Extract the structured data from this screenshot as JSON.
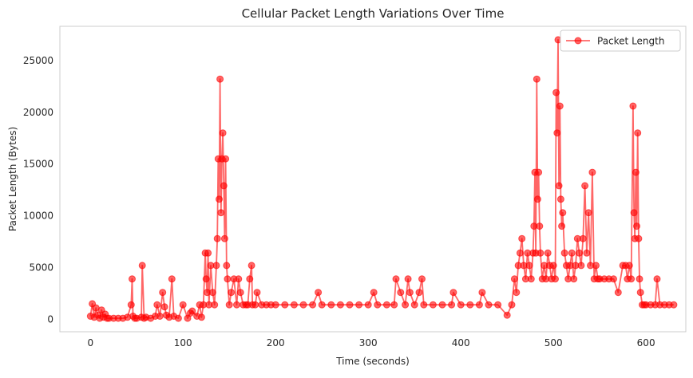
{
  "chart_data": {
    "type": "line",
    "title": "Cellular Packet Length Variations Over Time",
    "xlabel": "Time (seconds)",
    "ylabel": "Packet Length (Bytes)",
    "xlim": [
      -33,
      643
    ],
    "ylim": [
      -1200,
      28300
    ],
    "xticks": [
      0,
      100,
      200,
      300,
      400,
      500,
      600
    ],
    "xtick_labels": [
      "0",
      "100",
      "200",
      "300",
      "400",
      "500",
      "600"
    ],
    "yticks": [
      0,
      5000,
      10000,
      15000,
      20000,
      25000
    ],
    "ytick_labels": [
      "0",
      "5000",
      "10000",
      "15000",
      "20000",
      "25000"
    ],
    "grid": false,
    "legend_position": "top-right",
    "color": "#ff0000",
    "series": [
      {
        "name": "Packet Length",
        "marker": "circle",
        "x": [
          0,
          2,
          4,
          6,
          8,
          10,
          12,
          14,
          16,
          18,
          20,
          25,
          30,
          35,
          40,
          44,
          45,
          46,
          48,
          50,
          55,
          56,
          58,
          60,
          65,
          70,
          72,
          75,
          78,
          80,
          82,
          85,
          88,
          90,
          95,
          100,
          105,
          108,
          110,
          115,
          118,
          120,
          122,
          124,
          125,
          126,
          127,
          128,
          130,
          132,
          134,
          136,
          137,
          138,
          139,
          140,
          141,
          142,
          143,
          144,
          145,
          146,
          147,
          148,
          150,
          152,
          155,
          158,
          160,
          162,
          165,
          168,
          170,
          172,
          174,
          175,
          178,
          180,
          185,
          190,
          195,
          200,
          210,
          220,
          230,
          240,
          246,
          250,
          260,
          270,
          280,
          290,
          300,
          306,
          310,
          320,
          328,
          330,
          335,
          340,
          343,
          345,
          350,
          355,
          358,
          360,
          370,
          380,
          390,
          392,
          400,
          410,
          420,
          423,
          430,
          440,
          450,
          455,
          458,
          460,
          462,
          464,
          466,
          468,
          470,
          472,
          474,
          476,
          478,
          479,
          480,
          481,
          482,
          483,
          484,
          485,
          486,
          488,
          490,
          492,
          494,
          496,
          498,
          500,
          502,
          503,
          504,
          505,
          506,
          507,
          508,
          509,
          510,
          512,
          514,
          516,
          518,
          520,
          522,
          524,
          526,
          528,
          530,
          532,
          534,
          536,
          538,
          540,
          542,
          544,
          546,
          548,
          550,
          555,
          560,
          565,
          570,
          575,
          578,
          580,
          582,
          584,
          586,
          587,
          588,
          589,
          590,
          591,
          592,
          593,
          594,
          596,
          598,
          600,
          605,
          610,
          612,
          615,
          620,
          625,
          630
        ],
        "y": [
          300,
          1500,
          200,
          1100,
          400,
          100,
          900,
          200,
          500,
          100,
          100,
          100,
          100,
          100,
          200,
          1400,
          3900,
          300,
          100,
          100,
          200,
          5200,
          100,
          200,
          100,
          300,
          1400,
          300,
          2600,
          1200,
          400,
          200,
          3900,
          300,
          100,
          1400,
          100,
          600,
          800,
          300,
          1400,
          200,
          1400,
          6400,
          3900,
          2600,
          6400,
          1400,
          5200,
          2600,
          1400,
          5200,
          7800,
          15500,
          11600,
          23200,
          10300,
          15500,
          18000,
          12900,
          7800,
          15500,
          5200,
          3900,
          1400,
          2600,
          3900,
          1400,
          3900,
          2600,
          1400,
          1400,
          1400,
          3900,
          5200,
          1400,
          1400,
          2600,
          1400,
          1400,
          1400,
          1400,
          1400,
          1400,
          1400,
          1400,
          2600,
          1400,
          1400,
          1400,
          1400,
          1400,
          1400,
          2600,
          1400,
          1400,
          1400,
          3900,
          2600,
          1400,
          3900,
          2600,
          1400,
          2600,
          3900,
          1400,
          1400,
          1400,
          1400,
          2600,
          1400,
          1400,
          1400,
          2600,
          1400,
          1400,
          400,
          1400,
          3900,
          2600,
          5200,
          6400,
          7800,
          5200,
          3900,
          6400,
          5200,
          3900,
          6400,
          9000,
          14200,
          6400,
          23200,
          11600,
          14200,
          9000,
          6400,
          3900,
          5200,
          3900,
          6400,
          5200,
          3900,
          5200,
          3900,
          21900,
          18000,
          27000,
          12900,
          20600,
          11600,
          9000,
          10300,
          6400,
          5200,
          3900,
          5200,
          6400,
          3900,
          5200,
          7800,
          6400,
          5200,
          7800,
          12900,
          6400,
          10300,
          5200,
          14200,
          3900,
          5200,
          3900,
          3900,
          3900,
          3900,
          3900,
          2600,
          5200,
          5200,
          3900,
          5200,
          3900,
          20600,
          10300,
          7800,
          14200,
          9000,
          18000,
          7800,
          3900,
          2600,
          1400,
          1400,
          1400,
          1400,
          1400,
          3900,
          1400,
          1400,
          1400,
          1400
        ]
      }
    ]
  }
}
